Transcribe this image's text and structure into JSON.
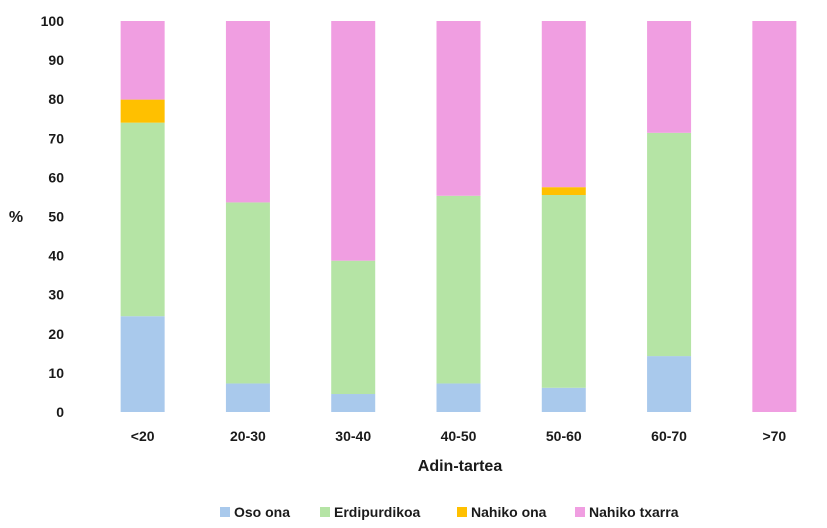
{
  "chart_data": {
    "type": "bar",
    "stacked": true,
    "categories": [
      "<20",
      "20-30",
      "30-40",
      "40-50",
      "50-60",
      "60-70",
      ">70"
    ],
    "series": [
      {
        "name": "Oso ona",
        "color": "#a9c9ec",
        "values": [
          24.5,
          7.3,
          4.6,
          7.3,
          6.2,
          14.3,
          0
        ]
      },
      {
        "name": "Erdipurdikoa",
        "color": "#b5e4a5",
        "values": [
          49.5,
          46.3,
          34.1,
          48.0,
          49.3,
          57.1,
          0
        ]
      },
      {
        "name": "Nahiko ona",
        "color": "#ffc000",
        "values": [
          5.9,
          0,
          0,
          0,
          2.0,
          0,
          0
        ]
      },
      {
        "name": "Nahiko txarra",
        "color": "#f09ee1",
        "values": [
          20.1,
          46.4,
          61.3,
          44.7,
          42.5,
          28.6,
          100
        ]
      }
    ],
    "xlabel": "Adin-tartea",
    "ylabel": "%",
    "ylim": [
      0,
      100
    ],
    "yticks": [
      0,
      10,
      20,
      30,
      40,
      50,
      60,
      70,
      80,
      90,
      100
    ],
    "grid": false,
    "legend": "bottom"
  }
}
